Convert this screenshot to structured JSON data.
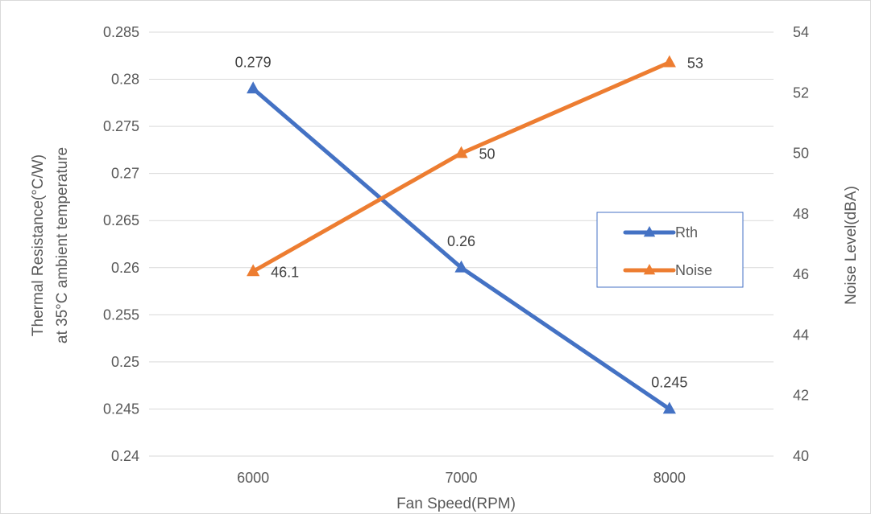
{
  "chart_data": {
    "type": "line",
    "categories": [
      "6000",
      "7000",
      "8000"
    ],
    "xlabel": "Fan Speed(RPM)",
    "ylabel_lines": [
      "Thermal Resistance(°C/W)",
      "at 35°C ambient temperature"
    ],
    "y2label": "Noise Level(dBA)",
    "ylim": [
      0.24,
      0.285
    ],
    "yticks": [
      "0.24",
      "0.245",
      "0.25",
      "0.255",
      "0.26",
      "0.265",
      "0.27",
      "0.275",
      "0.28",
      "0.285"
    ],
    "y2lim": [
      40,
      54
    ],
    "y2ticks": [
      "40",
      "42",
      "44",
      "46",
      "48",
      "50",
      "52",
      "54"
    ],
    "grid": true,
    "legend_position": "right",
    "series": [
      {
        "name": "Rth",
        "axis": "left",
        "values": [
          0.279,
          0.26,
          0.245
        ],
        "labels": [
          "0.279",
          "0.26",
          "0.245"
        ],
        "color": "#4472c4",
        "marker": "triangle"
      },
      {
        "name": "Noise",
        "axis": "right",
        "values": [
          46.1,
          50,
          53
        ],
        "labels": [
          "46.1",
          "50",
          "53"
        ],
        "color": "#ed7d31",
        "marker": "triangle"
      }
    ]
  }
}
